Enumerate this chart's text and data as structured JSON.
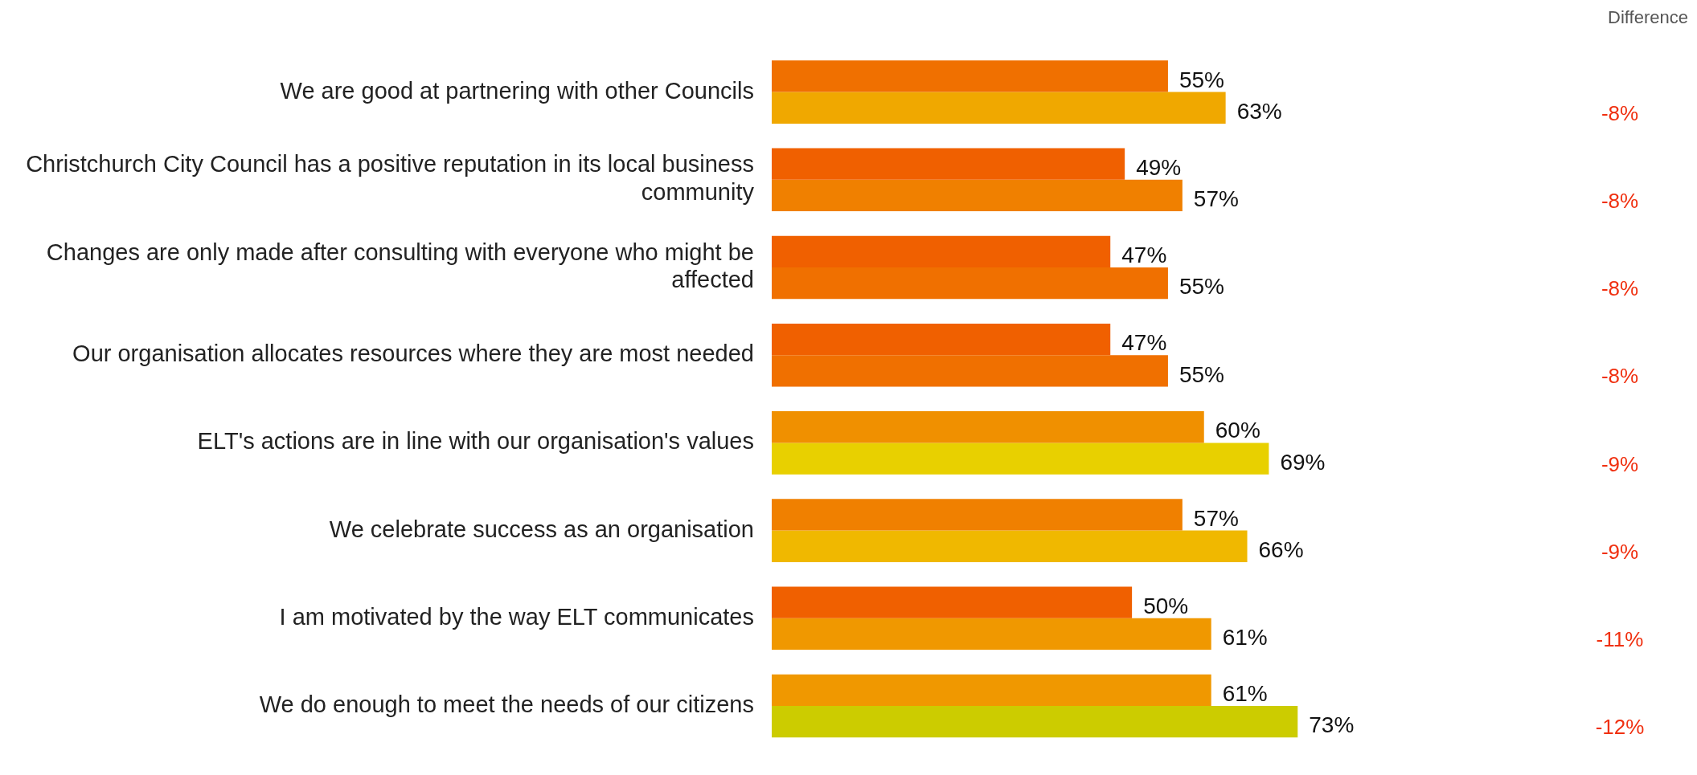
{
  "chart_data": {
    "type": "bar",
    "orientation": "horizontal",
    "categories": [
      "We are good at partnering with other Councils",
      "Christchurch City Council has a positive reputation in its local business community",
      "Changes are only made after consulting with everyone who might be affected",
      "Our organisation allocates resources where they are most needed",
      "ELT's actions are in line with our organisation's values",
      "We celebrate success as an organisation",
      "I am motivated by the way ELT communicates",
      "We do enough to meet the needs of our citizens"
    ],
    "series": [
      {
        "values": [
          55,
          49,
          47,
          47,
          60,
          57,
          50,
          61
        ],
        "value_labels": [
          "55%",
          "49%",
          "47%",
          "47%",
          "60%",
          "57%",
          "50%",
          "61%"
        ],
        "colors": [
          "#f07000",
          "#f06000",
          "#f06000",
          "#f06000",
          "#f09000",
          "#f08000",
          "#f06000",
          "#f09800"
        ]
      },
      {
        "values": [
          63,
          57,
          55,
          55,
          69,
          66,
          61,
          73
        ],
        "value_labels": [
          "63%",
          "57%",
          "55%",
          "55%",
          "69%",
          "66%",
          "61%",
          "73%"
        ],
        "colors": [
          "#f0a800",
          "#f08000",
          "#f07000",
          "#f07000",
          "#e8d000",
          "#f0b800",
          "#f09800",
          "#cccc00"
        ]
      }
    ],
    "grid": false,
    "legend": false,
    "tick_labels": "y",
    "annotations": [
      "Difference",
      "-8%",
      "-8%",
      "-8%",
      "-8%",
      "-9%",
      "-9%",
      "-11%",
      "-12%"
    ]
  }
}
